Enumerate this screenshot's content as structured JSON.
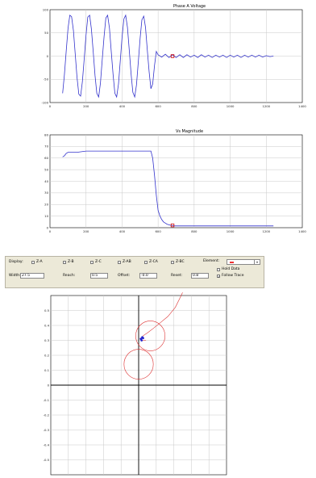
{
  "chart_data": [
    {
      "type": "line",
      "title": "Phase A Voltage",
      "xlabel": "",
      "ylabel": "",
      "xlim": [
        0,
        1400
      ],
      "ylim": [
        -100,
        100
      ],
      "xticks": [
        "0",
        "200",
        "400",
        "600",
        "800",
        "1000",
        "1200",
        "1400"
      ],
      "yticks": [
        "100",
        "50",
        "0",
        "-50",
        "-100"
      ],
      "grid": true,
      "series": [
        {
          "color": "#3333cc",
          "description": "sinusoid amplitude ~90, period ~55 from x=70 to x=590, then small oscillation amplitude ~3 to x=1240",
          "x": [
            70,
            80,
            90,
            100,
            110,
            120,
            130,
            140,
            150,
            160,
            170,
            180,
            190,
            200,
            210,
            220,
            230,
            240,
            250,
            260,
            270,
            280,
            290,
            300,
            310,
            320,
            330,
            340,
            350,
            360,
            370,
            380,
            390,
            400,
            410,
            420,
            430,
            440,
            450,
            460,
            470,
            480,
            490,
            500,
            510,
            520,
            530,
            540,
            550,
            560,
            570,
            580,
            590,
            600,
            620,
            640,
            660,
            680,
            700,
            720,
            740,
            760,
            780,
            800,
            820,
            840,
            860,
            880,
            900,
            920,
            940,
            960,
            980,
            1000,
            1020,
            1040,
            1060,
            1080,
            1100,
            1120,
            1140,
            1160,
            1180,
            1200,
            1220,
            1240
          ],
          "y": [
            -80,
            -40,
            10,
            60,
            88,
            85,
            55,
            5,
            -45,
            -82,
            -86,
            -55,
            -5,
            45,
            84,
            88,
            58,
            8,
            -42,
            -80,
            -88,
            -58,
            -8,
            42,
            82,
            88,
            60,
            10,
            -40,
            -80,
            -88,
            -60,
            -10,
            40,
            80,
            88,
            62,
            12,
            -38,
            -78,
            -88,
            -62,
            -12,
            38,
            78,
            86,
            62,
            14,
            -34,
            -70,
            -60,
            -20,
            10,
            3,
            -2,
            4,
            -3,
            3,
            -3,
            3,
            -3,
            3,
            -2,
            2,
            -3,
            3,
            -2,
            2,
            -3,
            2,
            -2,
            2,
            -3,
            2,
            -2,
            2,
            -3,
            2,
            -2,
            2,
            -2,
            2,
            -2,
            1,
            -1,
            0
          ]
        },
        {
          "color": "#cc0000",
          "marker_at": [
            680,
            0
          ]
        }
      ]
    },
    {
      "type": "line",
      "title": "Vs Magnitude",
      "xlabel": "",
      "ylabel": "",
      "xlim": [
        0,
        1400
      ],
      "ylim": [
        0,
        80
      ],
      "xticks": [
        "0",
        "200",
        "400",
        "600",
        "800",
        "1000",
        "1200",
        "1400"
      ],
      "yticks": [
        "80",
        "70",
        "60",
        "50",
        "40",
        "30",
        "20",
        "10",
        "0"
      ],
      "grid": true,
      "series": [
        {
          "color": "#3333cc",
          "x": [
            70,
            80,
            90,
            100,
            150,
            200,
            300,
            400,
            500,
            560,
            570,
            580,
            590,
            600,
            610,
            620,
            630,
            640,
            650,
            660,
            670,
            680,
            690,
            700,
            750,
            800,
            900,
            1000,
            1100,
            1200,
            1240
          ],
          "y": [
            61,
            62,
            64,
            65,
            65,
            66,
            66,
            66,
            66,
            66,
            60,
            45,
            28,
            15,
            10,
            7,
            5,
            4,
            3,
            2.5,
            2,
            1.8,
            1.5,
            1.5,
            1.5,
            1.5,
            1.5,
            1.5,
            1.5,
            1.5,
            1.5
          ]
        },
        {
          "color": "#cc0000",
          "marker_at": [
            680,
            2
          ]
        }
      ]
    },
    {
      "type": "scatter",
      "title": "",
      "xlabel": "",
      "ylabel": "",
      "xlim": [
        -0.6,
        0.6
      ],
      "ylim": [
        -0.6,
        0.6
      ],
      "yticks": [
        "0.5",
        "0.4",
        "0.3",
        "0.2",
        "0.1",
        "0",
        "-0.1",
        "-0.2",
        "-0.3",
        "-0.4",
        "-0.5"
      ],
      "grid": true,
      "circles": [
        {
          "color": "#dd3333",
          "cx": 0.08,
          "cy": 0.33,
          "r": 0.1
        },
        {
          "color": "#dd3333",
          "cx": 0.0,
          "cy": 0.14,
          "r": 0.1
        }
      ],
      "trajectory": {
        "color": "#dd3333",
        "x": [
          0.3,
          0.28,
          0.25,
          0.2,
          0.15,
          0.1,
          0.06,
          0.03,
          0.02,
          0.02,
          0.05
        ],
        "y": [
          0.62,
          0.58,
          0.52,
          0.46,
          0.42,
          0.38,
          0.35,
          0.33,
          0.31,
          0.3,
          0.3
        ]
      },
      "points": {
        "color": "#2222cc",
        "x": [
          0.015,
          0.03,
          0.02,
          0.025
        ],
        "y": [
          0.31,
          0.315,
          0.3,
          0.32
        ]
      }
    }
  ],
  "panel": {
    "display_label": "Display:",
    "checkboxes": [
      "Z-A",
      "Z-B",
      "Z-C",
      "Z-AB",
      "Z-CA",
      "Z-BC"
    ],
    "element_label": "Element:",
    "fields": [
      {
        "label": "Width:",
        "value": "27.5"
      },
      {
        "label": "Reach:",
        "value": "0.5"
      },
      {
        "label": "Offset:",
        "value": "-0.0"
      },
      {
        "label": "Reset:",
        "value": "0.8"
      }
    ],
    "option_hold": "Hold Data",
    "option_follow": "Follow Trace"
  },
  "colors": {
    "trace": "#3333cc",
    "marker": "#cc0000",
    "circle": "#dd3333",
    "grid": "#c8c8c8",
    "panel": "#ece9d8"
  }
}
